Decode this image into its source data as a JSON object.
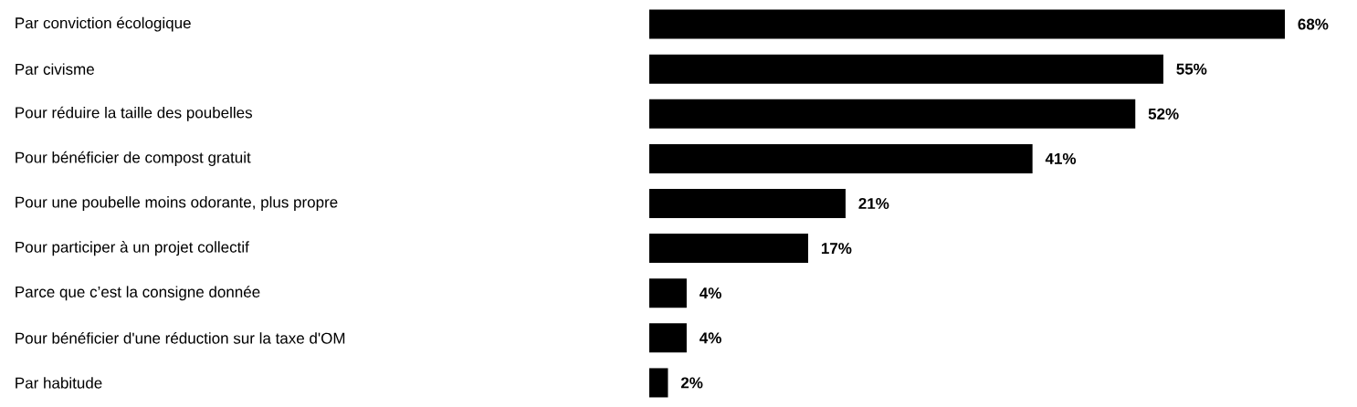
{
  "chart_data": {
    "type": "bar",
    "orientation": "horizontal",
    "categories": [
      "Par conviction écologique",
      "Par civisme",
      "Pour réduire la taille des poubelles",
      "Pour bénéficier de compost gratuit",
      "Pour une poubelle moins odorante, plus propre",
      "Pour participer à un projet collectif",
      "Parce que c’est la consigne donnée",
      "Pour bénéficier d'une réduction sur la taxe d'OM",
      "Par habitude"
    ],
    "values": [
      68,
      55,
      52,
      41,
      21,
      17,
      4,
      4,
      2
    ],
    "value_labels": [
      "68%",
      "55%",
      "52%",
      "41%",
      "21%",
      "17%",
      "4%",
      "4%",
      "2%"
    ],
    "color": "#000000",
    "xlim": [
      0,
      68
    ]
  }
}
